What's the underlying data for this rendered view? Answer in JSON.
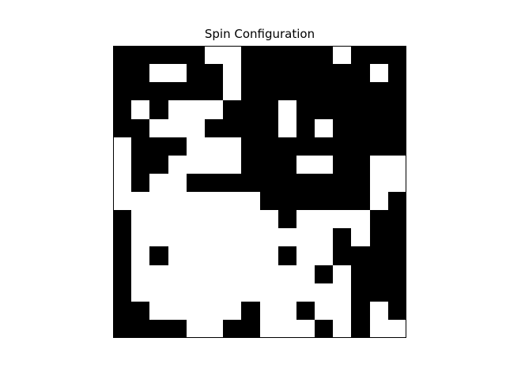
{
  "chart_data": {
    "type": "heatmap",
    "title": "Spin Configuration",
    "xlabel": "",
    "ylabel": "",
    "grid": false,
    "axes_visible": false,
    "rows": 16,
    "cols": 16,
    "value_colors": {
      "-1": "#000000",
      "1": "#ffffff"
    },
    "values": [
      [
        -1,
        -1,
        -1,
        -1,
        -1,
        1,
        1,
        -1,
        -1,
        -1,
        -1,
        -1,
        1,
        -1,
        -1,
        -1
      ],
      [
        -1,
        -1,
        1,
        1,
        -1,
        -1,
        1,
        -1,
        -1,
        -1,
        -1,
        -1,
        -1,
        -1,
        1,
        -1
      ],
      [
        -1,
        -1,
        -1,
        -1,
        -1,
        -1,
        1,
        -1,
        -1,
        -1,
        -1,
        -1,
        -1,
        -1,
        -1,
        -1
      ],
      [
        -1,
        1,
        -1,
        1,
        1,
        1,
        -1,
        -1,
        -1,
        1,
        -1,
        -1,
        -1,
        -1,
        -1,
        -1
      ],
      [
        -1,
        -1,
        1,
        1,
        1,
        -1,
        -1,
        -1,
        -1,
        1,
        -1,
        1,
        -1,
        -1,
        -1,
        -1
      ],
      [
        1,
        -1,
        -1,
        -1,
        1,
        1,
        1,
        -1,
        -1,
        -1,
        -1,
        -1,
        -1,
        -1,
        -1,
        -1
      ],
      [
        1,
        -1,
        -1,
        1,
        1,
        1,
        1,
        -1,
        -1,
        -1,
        1,
        1,
        -1,
        -1,
        1,
        1
      ],
      [
        1,
        -1,
        1,
        1,
        -1,
        -1,
        -1,
        -1,
        -1,
        -1,
        -1,
        -1,
        -1,
        -1,
        1,
        1
      ],
      [
        1,
        1,
        1,
        1,
        1,
        1,
        1,
        1,
        -1,
        -1,
        -1,
        -1,
        -1,
        -1,
        1,
        -1
      ],
      [
        -1,
        1,
        1,
        1,
        1,
        1,
        1,
        1,
        1,
        -1,
        1,
        1,
        1,
        1,
        -1,
        -1
      ],
      [
        -1,
        1,
        1,
        1,
        1,
        1,
        1,
        1,
        1,
        1,
        1,
        1,
        -1,
        1,
        -1,
        -1
      ],
      [
        -1,
        1,
        -1,
        1,
        1,
        1,
        1,
        1,
        1,
        -1,
        1,
        1,
        -1,
        -1,
        -1,
        -1
      ],
      [
        -1,
        1,
        1,
        1,
        1,
        1,
        1,
        1,
        1,
        1,
        1,
        -1,
        1,
        -1,
        -1,
        -1
      ],
      [
        -1,
        1,
        1,
        1,
        1,
        1,
        1,
        1,
        1,
        1,
        1,
        1,
        1,
        -1,
        -1,
        -1
      ],
      [
        -1,
        -1,
        1,
        1,
        1,
        1,
        1,
        -1,
        1,
        1,
        -1,
        1,
        1,
        -1,
        1,
        -1
      ],
      [
        -1,
        -1,
        -1,
        -1,
        1,
        1,
        -1,
        -1,
        1,
        1,
        1,
        -1,
        1,
        -1,
        1,
        1
      ]
    ]
  }
}
